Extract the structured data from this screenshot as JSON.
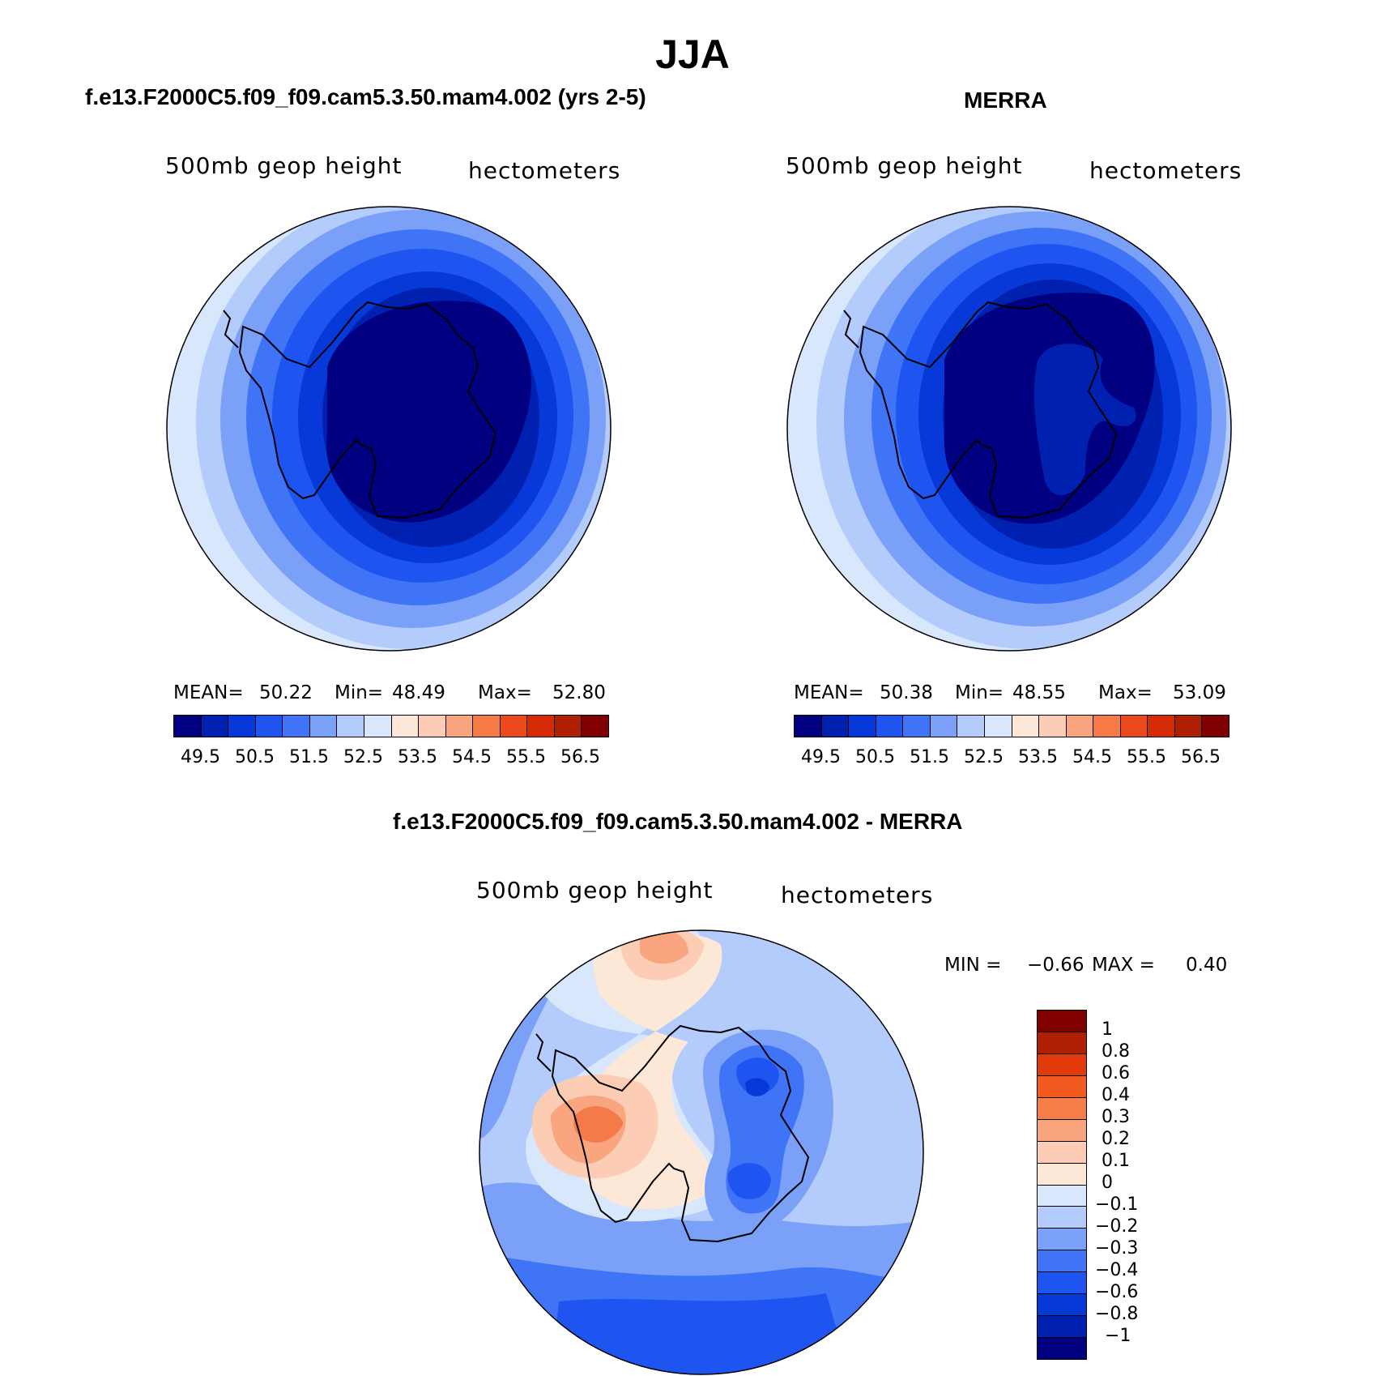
{
  "figure": {
    "title": "JJA"
  },
  "panels": [
    {
      "title": "f.e13.F2000C5.f09_f09.cam5.3.50.mam4.002 (yrs 2-5)",
      "variable": "500mb  geop height",
      "units": "hectometers",
      "stats": {
        "mean_label": "MEAN=",
        "mean": "50.22",
        "min_label": "Min=",
        "min": "48.49",
        "max_label": "Max=",
        "max": "52.80"
      },
      "colorbar_ticks": [
        "49.5",
        "50.5",
        "51.5",
        "52.5",
        "53.5",
        "54.5",
        "55.5",
        "56.5"
      ]
    },
    {
      "title": "MERRA",
      "variable": "500mb  geop height",
      "units": "hectometers",
      "stats": {
        "mean_label": "MEAN=",
        "mean": "50.38",
        "min_label": "Min=",
        "min": "48.55",
        "max_label": "Max=",
        "max": "53.09"
      },
      "colorbar_ticks": [
        "49.5",
        "50.5",
        "51.5",
        "52.5",
        "53.5",
        "54.5",
        "55.5",
        "56.5"
      ]
    },
    {
      "title": "f.e13.F2000C5.f09_f09.cam5.3.50.mam4.002 - MERRA",
      "variable": "500mb  geop height",
      "units": "hectometers",
      "stats": {
        "min_label": "MIN =",
        "min": "−0.66",
        "max_label": "MAX =",
        "max": "0.40"
      },
      "colorbar_ticks": [
        "1",
        "0.8",
        "0.6",
        "0.4",
        "0.3",
        "0.2",
        "0.1",
        "0",
        "−0.1",
        "−0.2",
        "−0.3",
        "−0.4",
        "−0.6",
        "−0.8",
        "−1"
      ]
    }
  ],
  "colors": {
    "abs_scale": [
      "#000080",
      "#0021b0",
      "#0639d8",
      "#1e55f0",
      "#3f74f6",
      "#7aa0f8",
      "#b3ccfb",
      "#d8e7fc",
      "#fde8d8",
      "#fccdb4",
      "#f8a580",
      "#f47a48",
      "#ec4a1c",
      "#d62a08",
      "#ae1f04",
      "#800000"
    ],
    "diff_scale": [
      "#800000",
      "#ae1f04",
      "#e23a0a",
      "#f25a20",
      "#f67c48",
      "#f8a580",
      "#fccdb4",
      "#fde8d8",
      "#d8e7fc",
      "#b3ccfb",
      "#7aa0f8",
      "#3f74f6",
      "#1e55f0",
      "#0639d8",
      "#0021b0",
      "#000080"
    ],
    "coastline": "#000000"
  }
}
